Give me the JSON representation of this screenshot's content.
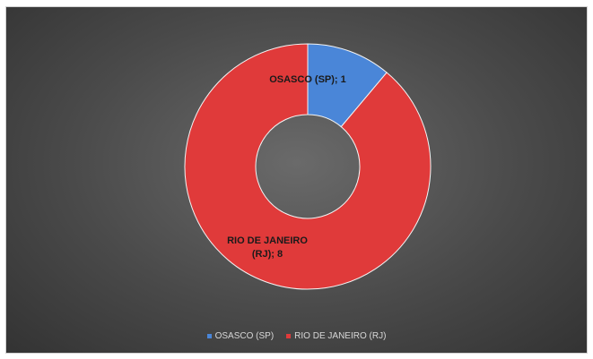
{
  "chart_data": {
    "type": "pie",
    "donut": true,
    "categories": [
      "OSASCO (SP)",
      "RIO DE JANEIRO (RJ)"
    ],
    "values": [
      1,
      8
    ],
    "colors": [
      "#4a86d8",
      "#e03a3a"
    ],
    "data_labels": [
      "OSASCO (SP); 1",
      "RIO DE JANEIRO (RJ); 8"
    ],
    "legend": "bottom",
    "title": ""
  }
}
